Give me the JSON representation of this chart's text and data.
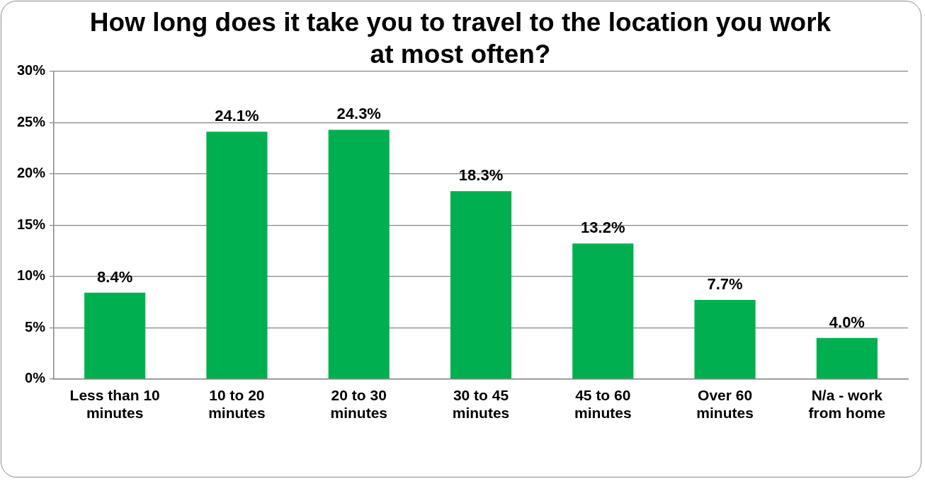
{
  "chart_data": {
    "type": "bar",
    "title": "How long does it take you to travel to the location you work at most often?",
    "categories": [
      "Less than 10 minutes",
      "10 to 20 minutes",
      "20 to 30 minutes",
      "30 to 45 minutes",
      "45 to 60 minutes",
      "Over 60 minutes",
      "N/a - work from home"
    ],
    "values": [
      8.4,
      24.1,
      24.3,
      18.3,
      13.2,
      7.7,
      4.0
    ],
    "value_labels": [
      "8.4%",
      "24.1%",
      "24.3%",
      "18.3%",
      "13.2%",
      "7.7%",
      "4.0%"
    ],
    "color": "#00b050",
    "ylim": [
      0,
      30
    ],
    "yticks": [
      {
        "value": 0,
        "label": "0%"
      },
      {
        "value": 5,
        "label": "5%"
      },
      {
        "value": 10,
        "label": "10%"
      },
      {
        "value": 15,
        "label": "15%"
      },
      {
        "value": 20,
        "label": "20%"
      },
      {
        "value": 25,
        "label": "25%"
      },
      {
        "value": 30,
        "label": "30%"
      }
    ],
    "grid": "y",
    "legend": false
  }
}
